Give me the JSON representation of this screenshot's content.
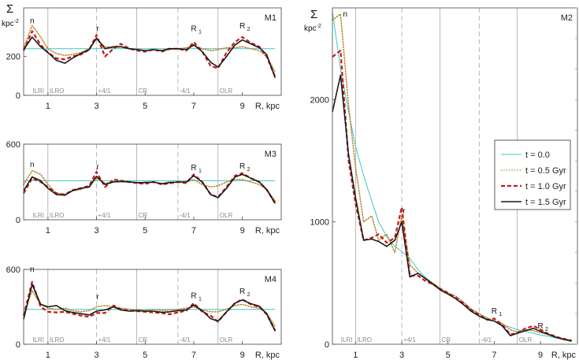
{
  "figure": {
    "y_symbol": "Σ",
    "y_unit": "kpc",
    "y_unit_exp": "-2",
    "x_label": "R, kpc"
  },
  "legend": {
    "entries": [
      {
        "label": "t = 0.0",
        "color": "#3cc8c8",
        "dash": "solid"
      },
      {
        "label": "t = 0.5 Gyr",
        "color": "#b8862e",
        "dash": "dot"
      },
      {
        "label": "t = 1.0 Gyr",
        "color": "#cc1818",
        "dash": "dash"
      },
      {
        "label": "t = 1.5 Gyr",
        "color": "#1a1a1a",
        "dash": "solid"
      }
    ]
  },
  "chart_data": [
    {
      "type": "line",
      "title": "M1",
      "xlabel": "R, kpc",
      "ylabel": "Σ kpc-2",
      "xlim": [
        0,
        10.6
      ],
      "ylim": [
        0,
        450
      ],
      "xticks": [
        1,
        3,
        5,
        7,
        9
      ],
      "yticks": [
        0,
        200
      ],
      "resonances": [
        {
          "label": "ILRI",
          "x": 0.3,
          "line": false
        },
        {
          "label": "ILRO",
          "x": 1.0,
          "line": "solid"
        },
        {
          "label": "+4/1",
          "x": 3.0,
          "line": "dashed"
        },
        {
          "label": "CR",
          "x": 4.65,
          "line": "solid"
        },
        {
          "label": "-4/1",
          "x": 6.35,
          "line": "dashed"
        },
        {
          "label": "OLR",
          "x": 8.0,
          "line": "solid"
        }
      ],
      "peaks": [
        {
          "label": "n",
          "sub": "",
          "x": 0.35,
          "y": 370
        },
        {
          "label": "r",
          "sub": "",
          "x": 3.05,
          "y": 330
        },
        {
          "label": "R",
          "sub": "1",
          "x": 7.0,
          "y": 330
        },
        {
          "label": "R",
          "sub": "2",
          "x": 9.0,
          "y": 345
        }
      ],
      "x": [
        0.0,
        0.35,
        0.7,
        1.0,
        1.35,
        1.7,
        2.0,
        2.35,
        2.7,
        3.0,
        3.35,
        3.7,
        4.0,
        4.35,
        4.7,
        5.0,
        5.35,
        5.7,
        6.0,
        6.35,
        6.7,
        7.0,
        7.35,
        7.7,
        8.0,
        8.35,
        8.7,
        9.0,
        9.35,
        9.7,
        10.0,
        10.35
      ],
      "series": [
        {
          "name": "t = 0.0",
          "values": [
            240,
            240,
            240,
            240,
            240,
            240,
            240,
            240,
            240,
            240,
            240,
            240,
            240,
            240,
            240,
            240,
            240,
            240,
            240,
            240,
            240,
            240,
            240,
            240,
            240,
            240,
            240,
            240,
            240,
            240,
            240,
            240
          ]
        },
        {
          "name": "t = 0.5 Gyr",
          "values": [
            240,
            360,
            300,
            240,
            215,
            205,
            210,
            220,
            240,
            290,
            250,
            245,
            250,
            240,
            235,
            230,
            235,
            230,
            235,
            240,
            245,
            255,
            240,
            230,
            235,
            245,
            245,
            250,
            240,
            230,
            200,
            120
          ]
        },
        {
          "name": "t = 1.0 Gyr",
          "values": [
            230,
            330,
            260,
            220,
            190,
            185,
            200,
            210,
            235,
            310,
            200,
            240,
            265,
            240,
            230,
            225,
            235,
            225,
            240,
            240,
            230,
            275,
            225,
            150,
            140,
            220,
            275,
            300,
            270,
            250,
            200,
            95
          ]
        },
        {
          "name": "t = 1.5 Gyr",
          "values": [
            235,
            300,
            250,
            220,
            180,
            165,
            190,
            215,
            235,
            295,
            240,
            250,
            250,
            240,
            235,
            230,
            235,
            230,
            240,
            240,
            235,
            260,
            225,
            170,
            145,
            200,
            260,
            285,
            265,
            245,
            210,
            90
          ]
        }
      ]
    },
    {
      "type": "line",
      "title": "M3",
      "xlabel": "R, kpc",
      "ylabel": "Σ kpc-2",
      "xlim": [
        0,
        10.6
      ],
      "ylim": [
        0,
        600
      ],
      "xticks": [
        1,
        3,
        5,
        7,
        9
      ],
      "yticks": [
        0,
        600
      ],
      "resonances": [
        {
          "label": "ILRI",
          "x": 0.3,
          "line": false
        },
        {
          "label": "ILRO",
          "x": 1.0,
          "line": "solid"
        },
        {
          "label": "+4/1",
          "x": 3.0,
          "line": "dashed"
        },
        {
          "label": "CR",
          "x": 4.65,
          "line": "solid"
        },
        {
          "label": "-4/1",
          "x": 6.35,
          "line": "dashed"
        },
        {
          "label": "OLR",
          "x": 8.0,
          "line": "solid"
        }
      ],
      "peaks": [
        {
          "label": "n",
          "sub": "",
          "x": 0.35,
          "y": 420
        },
        {
          "label": "r",
          "sub": "",
          "x": 3.05,
          "y": 400
        },
        {
          "label": "R",
          "sub": "1",
          "x": 7.0,
          "y": 395
        },
        {
          "label": "R",
          "sub": "2",
          "x": 9.0,
          "y": 405
        }
      ],
      "x": [
        0.0,
        0.35,
        0.7,
        1.0,
        1.35,
        1.7,
        2.0,
        2.35,
        2.7,
        3.0,
        3.35,
        3.7,
        4.0,
        4.35,
        4.7,
        5.0,
        5.35,
        5.7,
        6.0,
        6.35,
        6.7,
        7.0,
        7.35,
        7.7,
        8.0,
        8.35,
        8.7,
        9.0,
        9.35,
        9.7,
        10.0,
        10.35
      ],
      "series": [
        {
          "name": "t = 0.0",
          "values": [
            310,
            310,
            310,
            310,
            310,
            310,
            310,
            310,
            310,
            310,
            310,
            310,
            310,
            310,
            310,
            310,
            310,
            310,
            310,
            310,
            310,
            310,
            310,
            310,
            310,
            310,
            310,
            310,
            310,
            310,
            310,
            310
          ]
        },
        {
          "name": "t = 0.5 Gyr",
          "values": [
            280,
            390,
            360,
            280,
            210,
            200,
            230,
            240,
            270,
            330,
            290,
            300,
            300,
            300,
            290,
            300,
            295,
            290,
            300,
            295,
            300,
            320,
            280,
            260,
            270,
            300,
            320,
            320,
            300,
            280,
            240,
            150
          ]
        },
        {
          "name": "t = 1.0 Gyr",
          "values": [
            210,
            330,
            300,
            260,
            210,
            200,
            235,
            250,
            270,
            380,
            260,
            320,
            310,
            300,
            290,
            285,
            300,
            280,
            290,
            300,
            290,
            360,
            300,
            200,
            180,
            260,
            350,
            370,
            330,
            300,
            240,
            130
          ]
        },
        {
          "name": "t = 1.5 Gyr",
          "values": [
            230,
            340,
            310,
            250,
            200,
            195,
            230,
            250,
            260,
            345,
            280,
            300,
            305,
            300,
            295,
            295,
            300,
            285,
            295,
            300,
            300,
            350,
            300,
            200,
            175,
            250,
            340,
            360,
            330,
            300,
            240,
            130
          ]
        }
      ]
    },
    {
      "type": "line",
      "title": "M4",
      "xlabel": "R, kpc",
      "ylabel": "Σ kpc-2",
      "xlim": [
        0,
        10.6
      ],
      "ylim": [
        0,
        600
      ],
      "xticks": [
        1,
        3,
        5,
        7,
        9
      ],
      "yticks": [
        0,
        600
      ],
      "resonances": [
        {
          "label": "ILRI",
          "x": 0.3,
          "line": false
        },
        {
          "label": "ILRO",
          "x": 1.0,
          "line": "solid"
        },
        {
          "label": "+4/1",
          "x": 3.0,
          "line": "dashed"
        },
        {
          "label": "CR",
          "x": 4.65,
          "line": "solid"
        },
        {
          "label": "-4/1",
          "x": 6.35,
          "line": "dashed"
        },
        {
          "label": "OLR",
          "x": 8.0,
          "line": "solid"
        }
      ],
      "peaks": [
        {
          "label": "n",
          "sub": "",
          "x": 0.35,
          "y": 580
        },
        {
          "label": "r",
          "sub": "",
          "x": 3.05,
          "y": 360
        },
        {
          "label": "R",
          "sub": "1",
          "x": 7.0,
          "y": 370
        },
        {
          "label": "R",
          "sub": "2",
          "x": 9.0,
          "y": 405
        }
      ],
      "x": [
        0.0,
        0.35,
        0.7,
        1.0,
        1.35,
        1.7,
        2.0,
        2.35,
        2.7,
        3.0,
        3.35,
        3.7,
        4.0,
        4.35,
        4.7,
        5.0,
        5.35,
        5.7,
        6.0,
        6.35,
        6.7,
        7.0,
        7.35,
        7.7,
        8.0,
        8.35,
        8.7,
        9.0,
        9.35,
        9.7,
        10.0,
        10.35
      ],
      "series": [
        {
          "name": "t = 0.0",
          "values": [
            280,
            280,
            280,
            280,
            280,
            280,
            280,
            280,
            280,
            280,
            280,
            280,
            280,
            280,
            280,
            280,
            280,
            280,
            280,
            280,
            280,
            280,
            280,
            280,
            280,
            280,
            280,
            280,
            280,
            280,
            280,
            280
          ]
        },
        {
          "name": "t = 0.5 Gyr",
          "values": [
            240,
            430,
            320,
            290,
            280,
            290,
            270,
            260,
            270,
            300,
            310,
            300,
            290,
            280,
            275,
            270,
            280,
            270,
            275,
            280,
            290,
            300,
            275,
            260,
            260,
            280,
            310,
            320,
            300,
            290,
            250,
            140
          ]
        },
        {
          "name": "t = 1.0 Gyr",
          "values": [
            230,
            500,
            300,
            260,
            255,
            260,
            245,
            230,
            220,
            250,
            250,
            310,
            280,
            270,
            265,
            260,
            255,
            250,
            240,
            255,
            270,
            330,
            260,
            230,
            180,
            260,
            330,
            360,
            320,
            300,
            240,
            110
          ]
        },
        {
          "name": "t = 1.5 Gyr",
          "values": [
            200,
            480,
            320,
            300,
            310,
            270,
            255,
            245,
            235,
            265,
            275,
            300,
            275,
            265,
            270,
            265,
            265,
            255,
            260,
            270,
            275,
            315,
            270,
            205,
            185,
            260,
            330,
            355,
            325,
            305,
            245,
            105
          ]
        }
      ]
    },
    {
      "type": "line",
      "title": "M2",
      "xlabel": "R, kpc",
      "ylabel": "Σ kpc-2",
      "xlim": [
        0,
        10.6
      ],
      "ylim": [
        0,
        2750
      ],
      "xticks": [
        1,
        3,
        5,
        7,
        9
      ],
      "yticks": [
        0,
        1000,
        2000
      ],
      "resonances": [
        {
          "label": "ILRI",
          "x": 0.3,
          "line": false
        },
        {
          "label": "ILRO",
          "x": 1.0,
          "line": "solid"
        },
        {
          "label": "+4/1",
          "x": 3.0,
          "line": "dashed"
        },
        {
          "label": "CR",
          "x": 4.65,
          "line": "solid"
        },
        {
          "label": "-4/1",
          "x": 6.35,
          "line": "dashed"
        },
        {
          "label": "OLR",
          "x": 8.0,
          "line": "solid"
        }
      ],
      "peaks": [
        {
          "label": "n",
          "sub": "",
          "x": 0.55,
          "y": 2680
        },
        {
          "label": "r",
          "sub": "",
          "x": 3.1,
          "y": 1070
        },
        {
          "label": "R",
          "sub": "1",
          "x": 7.0,
          "y": 250
        },
        {
          "label": "R",
          "sub": "2",
          "x": 9.0,
          "y": 130
        }
      ],
      "x": [
        0.0,
        0.35,
        0.7,
        1.0,
        1.35,
        1.7,
        2.0,
        2.35,
        2.7,
        3.0,
        3.35,
        3.7,
        4.0,
        4.35,
        4.7,
        5.0,
        5.35,
        5.7,
        6.0,
        6.35,
        6.7,
        7.0,
        7.35,
        7.7,
        8.0,
        8.35,
        8.7,
        9.0,
        9.35,
        9.7,
        10.0,
        10.35
      ],
      "series": [
        {
          "name": "t = 0.0",
          "values": [
            2720,
            2250,
            1900,
            1620,
            1380,
            1170,
            1000,
            880,
            800,
            760,
            700,
            610,
            550,
            500,
            450,
            410,
            370,
            320,
            280,
            250,
            215,
            190,
            160,
            140,
            120,
            105,
            90,
            75,
            65,
            50,
            40,
            30
          ]
        },
        {
          "name": "t = 0.5 Gyr",
          "values": [
            2650,
            2700,
            1950,
            1450,
            1000,
            1050,
            850,
            900,
            750,
            1050,
            650,
            580,
            540,
            500,
            450,
            420,
            390,
            340,
            290,
            250,
            210,
            190,
            170,
            120,
            100,
            120,
            110,
            95,
            80,
            60,
            45,
            30
          ]
        },
        {
          "name": "t = 1.0 Gyr",
          "values": [
            2350,
            2400,
            1500,
            1150,
            850,
            870,
            900,
            830,
            870,
            1120,
            560,
            560,
            520,
            490,
            450,
            420,
            380,
            330,
            280,
            240,
            200,
            210,
            160,
            80,
            90,
            130,
            150,
            120,
            85,
            60,
            45,
            30
          ]
        },
        {
          "name": "t = 1.5 Gyr",
          "values": [
            1900,
            2200,
            1550,
            1200,
            850,
            860,
            840,
            800,
            850,
            1000,
            550,
            580,
            540,
            490,
            440,
            410,
            370,
            320,
            270,
            230,
            200,
            190,
            150,
            70,
            90,
            110,
            130,
            105,
            80,
            55,
            40,
            25
          ]
        }
      ]
    }
  ]
}
